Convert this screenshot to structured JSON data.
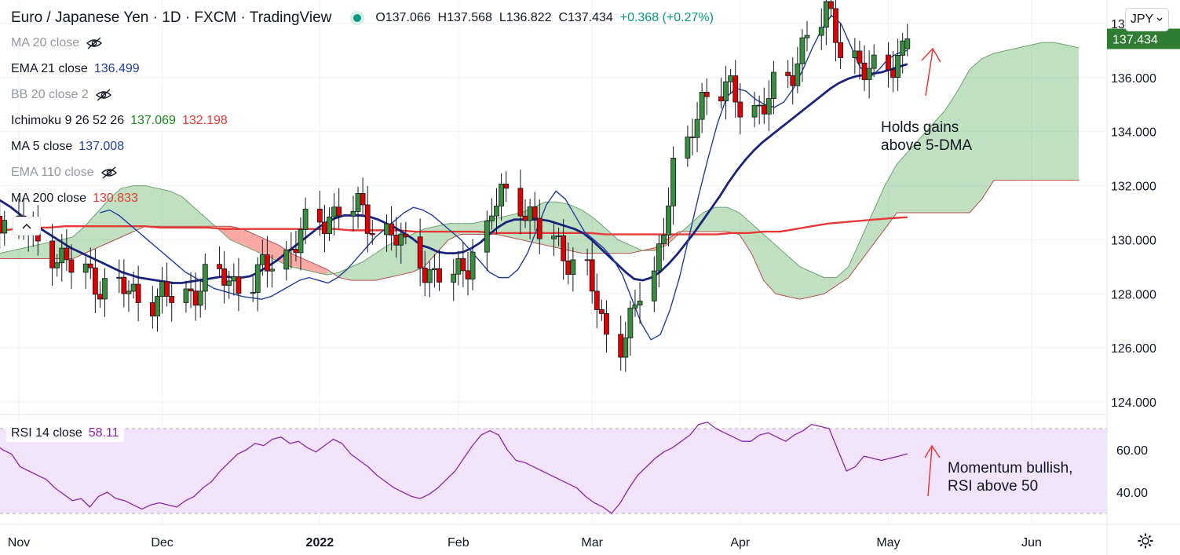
{
  "header": {
    "title": "Euro / Japanese Yen · 1D · FXCM · TradingView",
    "ohlc": {
      "open": "O137.066",
      "high": "H137.568",
      "low": "L136.822",
      "close": "C137.434",
      "change": "+0.368 (+0.27%)"
    }
  },
  "legend": [
    {
      "name": "MA 20 close",
      "hidden": true,
      "values": []
    },
    {
      "name": "EMA 21 close",
      "hidden": false,
      "values": [
        {
          "text": "136.499",
          "color": "#1f3e9e"
        }
      ]
    },
    {
      "name": "BB 20 close 2",
      "hidden": true,
      "values": []
    },
    {
      "name": "Ichimoku 9 26 52 26",
      "hidden": false,
      "values": [
        {
          "text": "137.069",
          "color": "#1a8a1a"
        },
        {
          "text": "132.198",
          "color": "#e53935"
        }
      ]
    },
    {
      "name": "MA 5 close",
      "hidden": false,
      "values": [
        {
          "text": "137.008",
          "color": "#1f3e9e"
        }
      ]
    },
    {
      "name": "EMA 110 close",
      "hidden": true,
      "values": []
    },
    {
      "name": "MA 200 close",
      "hidden": false,
      "values": [
        {
          "text": "130.833",
          "color": "#e53935"
        }
      ]
    }
  ],
  "currency_button": "JPY",
  "rsi_legend": {
    "name": "RSI 14 close",
    "value": "58.11"
  },
  "colors": {
    "up": "#388e3c",
    "down": "#e00000",
    "ema21": "#1a237e",
    "ma5": "#1f3e9e",
    "ma200": "#e53935",
    "rsi": "#8e24aa",
    "rsi_band": "#f1e4fb",
    "price_tag": "#2e7d32"
  },
  "chart_data": [
    {
      "type": "candlestick",
      "title": "Euro / Japanese Yen · 1D · FXCM · TradingView",
      "ylim": [
        123.5,
        139.8
      ],
      "y_ticks": [
        124,
        126,
        128,
        130,
        132,
        134,
        136,
        138
      ],
      "y_tick_labels": [
        "124.000",
        "126.000",
        "128.000",
        "130.000",
        "132.000",
        "134.000",
        "136.000",
        "138.000"
      ],
      "x_axis_labels": [
        {
          "label": "Nov",
          "date": "2021-11-01"
        },
        {
          "label": "Dec",
          "date": "2021-12-01"
        },
        {
          "label": "2022",
          "date": "2022-01-03",
          "bold": true
        },
        {
          "label": "Feb",
          "date": "2022-02-01"
        },
        {
          "label": "Mar",
          "date": "2022-03-01"
        },
        {
          "label": "Apr",
          "date": "2022-04-01"
        },
        {
          "label": "May",
          "date": "2022-05-02"
        },
        {
          "label": "Jun",
          "date": "2022-06-01"
        }
      ],
      "last_price_label": "137.434",
      "candle_dates_start": "2021-10-25",
      "candle_dates_end": "2022-05-06",
      "series": [
        {
          "name": "EMA 21 close",
          "values": [
            [
              131.5,
              131.6,
              131.4,
              131.2,
              130.95,
              130.7,
              130.5,
              130.3,
              130.1,
              129.9,
              129.7,
              129.55,
              129.4,
              129.25,
              129.1,
              128.95,
              128.8,
              128.7,
              128.6,
              128.55,
              128.5,
              128.45,
              128.4,
              128.4,
              128.45,
              128.5,
              128.55,
              128.6,
              128.65,
              128.6,
              128.6,
              128.65,
              128.8,
              129.0,
              129.2,
              129.45,
              129.7,
              129.95,
              130.2,
              130.45,
              130.65,
              130.8,
              130.9,
              130.9,
              130.9,
              130.85,
              130.75,
              130.6,
              130.45,
              130.25,
              130.05,
              129.8,
              129.7,
              129.55,
              129.5,
              129.5,
              129.55,
              129.7,
              129.9,
              130.2,
              130.45,
              130.65,
              130.75,
              130.75,
              130.75,
              130.75,
              130.7,
              130.6,
              130.5,
              130.4,
              130.25,
              130.0,
              129.7,
              129.4,
              129.1,
              128.8,
              128.55,
              128.5,
              128.6,
              128.8,
              129.1,
              129.45,
              129.85,
              130.25,
              130.7,
              131.15,
              131.6,
              132.1,
              132.55,
              132.95,
              133.3,
              133.6,
              133.85,
              134.1,
              134.35,
              134.6,
              134.85,
              135.1,
              135.35,
              135.6,
              135.8,
              135.95,
              136.05,
              136.1,
              136.15,
              136.2,
              136.3,
              136.4,
              136.499
            ]
          ]
        },
        {
          "name": "MA 5 close",
          "values": [
            [
              131.0,
              131.1,
              130.9,
              130.6,
              130.3,
              130.0,
              129.7,
              129.4,
              129.1,
              128.8,
              128.6,
              128.4,
              128.2,
              128.1,
              128.0,
              127.9,
              127.85,
              127.8,
              127.9,
              128.1,
              128.3,
              128.5,
              128.6,
              128.5,
              128.4,
              128.6,
              128.9,
              129.3,
              129.7,
              130.1,
              130.4,
              130.7,
              131.0,
              131.2,
              131.1,
              130.9,
              130.6,
              130.3,
              130.0,
              129.6,
              129.2,
              128.8,
              128.6,
              128.6,
              128.9,
              129.5,
              130.4,
              131.3,
              131.8,
              131.5,
              130.9,
              130.3,
              130.0,
              129.7,
              129.3,
              128.7,
              127.8,
              126.9,
              126.3,
              126.5,
              127.4,
              128.6,
              130.1,
              131.6,
              133.0,
              134.3,
              135.3,
              135.6,
              135.5,
              135.2,
              135.0,
              134.9,
              135.1,
              135.6,
              136.3,
              137.1,
              137.8,
              138.3,
              138.0,
              137.2,
              136.4,
              136.0,
              136.3,
              136.7,
              136.9,
              137.008
            ]
          ]
        },
        {
          "name": "MA 200 close",
          "values": [
            [
              130.3,
              130.35,
              130.4,
              130.45,
              130.45,
              130.5,
              130.5,
              130.5,
              130.5,
              130.5,
              130.5,
              130.45,
              130.45,
              130.45,
              130.45,
              130.4,
              130.4,
              130.4,
              130.4,
              130.4,
              130.4,
              130.4,
              130.4,
              130.35,
              130.35,
              130.35,
              130.35,
              130.3,
              130.3,
              130.3,
              130.3,
              130.3,
              130.25,
              130.25,
              130.25,
              130.25,
              130.25,
              130.25,
              130.25,
              130.2,
              130.2,
              130.2,
              130.2,
              130.2,
              130.2,
              130.2,
              130.2,
              130.25,
              130.25,
              130.3,
              130.3,
              130.4,
              130.5,
              130.6,
              130.65,
              130.7,
              130.75,
              130.8,
              130.833
            ]
          ]
        }
      ],
      "ichimoku_cloud": {
        "span_a": [
          129.5,
          129.6,
          129.7,
          129.8,
          129.9,
          130.0,
          130.1,
          130.5,
          131.0,
          131.5,
          131.9,
          132.0,
          132.0,
          131.9,
          131.8,
          131.6,
          131.2,
          130.8,
          130.4,
          130.0,
          129.8,
          129.6,
          129.4,
          129.2,
          129.0,
          128.9,
          128.8,
          128.7,
          128.8,
          129.0,
          129.2,
          129.5,
          129.8,
          130.0,
          130.2,
          130.4,
          130.5,
          130.6,
          130.6,
          130.6,
          130.7,
          130.8,
          130.9,
          131.0,
          131.2,
          131.4,
          131.4,
          131.3,
          131.1,
          130.8,
          130.4,
          130.0,
          129.8,
          129.6,
          129.6,
          129.8,
          130.2,
          130.6,
          131.0,
          131.2,
          131.2,
          131.0,
          130.6,
          130.2,
          129.8,
          129.4,
          129.0,
          128.8,
          128.6,
          128.6,
          129.0,
          130.0,
          131.0,
          132.0,
          132.8,
          133.3,
          133.8,
          134.3,
          134.8,
          135.5,
          136.3,
          136.7,
          136.9,
          137.0,
          137.1,
          137.2,
          137.3,
          137.3,
          137.2,
          137.1
        ],
        "span_b": [
          129.3,
          129.3,
          129.3,
          129.3,
          129.3,
          129.3,
          129.3,
          129.5,
          129.7,
          129.9,
          130.1,
          130.3,
          130.5,
          130.5,
          130.5,
          130.5,
          130.5,
          130.5,
          130.5,
          130.5,
          130.4,
          130.2,
          130.0,
          129.8,
          129.5,
          129.3,
          129.1,
          128.9,
          128.6,
          128.5,
          128.5,
          128.5,
          128.6,
          128.7,
          128.8,
          129.0,
          129.5,
          130.0,
          130.2,
          130.2,
          130.2,
          130.2,
          130.1,
          130.0,
          129.9,
          129.8,
          129.7,
          129.6,
          129.5,
          129.5,
          129.5,
          129.5,
          129.5,
          129.6,
          129.7,
          130.0,
          130.3,
          130.3,
          130.3,
          130.3,
          130.3,
          130.2,
          129.5,
          128.5,
          128.0,
          127.9,
          127.8,
          127.9,
          128.0,
          128.3,
          128.6,
          129.2,
          129.8,
          130.4,
          131.0,
          131.0,
          131.0,
          131.0,
          131.0,
          131.0,
          131.0,
          131.5,
          132.2,
          132.2,
          132.2,
          132.2,
          132.2,
          132.2,
          132.2,
          132.2
        ]
      },
      "annotations": [
        "Holds gains",
        "above 5-DMA"
      ]
    },
    {
      "type": "line",
      "title": "RSI 14 close",
      "ylim": [
        28,
        75
      ],
      "y_ticks": [
        40,
        60
      ],
      "y_tick_labels": [
        "40.00",
        "60.00"
      ],
      "band": [
        30,
        70
      ],
      "last_value": "58.11",
      "series": [
        {
          "name": "RSI 14 close",
          "values": [
            [
              67,
              63,
              60,
              58,
              52,
              50,
              48,
              46,
              42,
              39,
              36,
              37,
              33,
              38,
              40,
              37,
              36,
              34,
              32,
              34,
              35,
              34,
              33,
              36,
              38,
              42,
              45,
              50,
              54,
              58,
              60,
              63,
              62,
              65,
              66,
              63,
              64,
              61,
              59,
              62,
              65,
              63,
              58,
              55,
              52,
              48,
              45,
              42,
              40,
              38,
              37,
              39,
              42,
              46,
              50,
              56,
              62,
              67,
              69,
              67,
              60,
              55,
              54,
              52,
              50,
              48,
              46,
              44,
              42,
              38,
              35,
              33,
              30,
              35,
              42,
              48,
              52,
              56,
              59,
              61,
              64,
              67,
              72,
              73,
              70,
              68,
              66,
              64,
              64,
              67,
              68,
              66,
              64,
              67,
              69,
              72,
              71,
              70,
              60,
              50,
              52,
              57,
              56,
              55,
              56,
              57,
              58.11
            ]
          ]
        }
      ],
      "annotations": [
        "Momentum bullish,",
        "RSI above 50"
      ]
    }
  ]
}
